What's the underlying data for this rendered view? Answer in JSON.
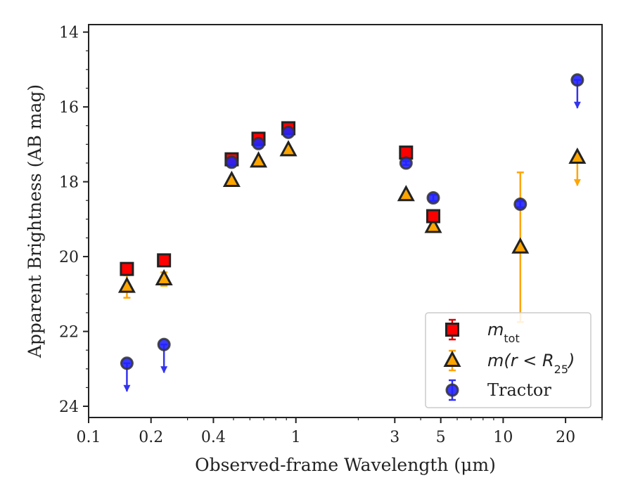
{
  "chart_data": {
    "type": "scatter",
    "xlabel": "Observed-frame Wavelength (μm)",
    "ylabel": "Apparent Brightness (AB mag)",
    "xscale": "log",
    "xlim": [
      0.1,
      30
    ],
    "ylim": [
      24.3,
      13.8
    ],
    "y_inverted": true,
    "x_ticks": [
      0.1,
      0.2,
      0.4,
      1,
      3,
      5,
      10,
      20
    ],
    "x_tick_labels": [
      "0.1",
      "0.2",
      "0.4",
      "1",
      "3",
      "5",
      "10",
      "20"
    ],
    "y_ticks": [
      14,
      16,
      18,
      20,
      22,
      24
    ],
    "y_tick_labels": [
      "14",
      "16",
      "18",
      "20",
      "22",
      "24"
    ],
    "grid": false,
    "legend_position": "lower-right",
    "series": [
      {
        "name": "m_tot",
        "legend_label": "m",
        "legend_sub": "tot",
        "marker": "square",
        "face_color": "#ff0000",
        "edge_color": "#222222",
        "error_color": "#dd0000",
        "points": [
          {
            "x": 0.153,
            "y": 20.33,
            "yerr": 0.08
          },
          {
            "x": 0.231,
            "y": 20.1,
            "yerr": 0.08
          },
          {
            "x": 0.49,
            "y": 17.4,
            "yerr": 0.05
          },
          {
            "x": 0.66,
            "y": 16.85,
            "yerr": 0.05
          },
          {
            "x": 0.92,
            "y": 16.57,
            "yerr": 0.05
          },
          {
            "x": 3.4,
            "y": 17.22,
            "yerr": 0.05
          },
          {
            "x": 4.6,
            "y": 18.92,
            "yerr": 0.08
          }
        ]
      },
      {
        "name": "m(r<R25)",
        "legend_label": "m(r < R",
        "legend_sub": "25",
        "legend_suffix": ")",
        "marker": "triangle",
        "face_color": "#ffa500",
        "edge_color": "#222222",
        "error_color": "#ffa500",
        "points": [
          {
            "x": 0.153,
            "y": 20.8,
            "yerr": 0.3
          },
          {
            "x": 0.231,
            "y": 20.6,
            "yerr": 0.18
          },
          {
            "x": 0.49,
            "y": 17.97,
            "yerr": 0.05
          },
          {
            "x": 0.66,
            "y": 17.45,
            "yerr": 0.05
          },
          {
            "x": 0.92,
            "y": 17.15,
            "yerr": 0.05
          },
          {
            "x": 3.4,
            "y": 18.35,
            "yerr": 0.05
          },
          {
            "x": 4.6,
            "y": 19.2,
            "yerr": 0.08
          },
          {
            "x": 12.1,
            "y": 19.75,
            "yerr": 2.0
          },
          {
            "x": 22.8,
            "y": 17.35,
            "upper_limit": true
          }
        ]
      },
      {
        "name": "Tractor",
        "legend_label": "Tractor",
        "marker": "circle",
        "face_color": "#2222ff",
        "edge_color": "#333333",
        "error_color": "#3333ee",
        "points": [
          {
            "x": 0.153,
            "y": 22.85,
            "upper_limit": true
          },
          {
            "x": 0.231,
            "y": 22.35,
            "upper_limit": true
          },
          {
            "x": 0.49,
            "y": 17.48,
            "yerr": 0.05
          },
          {
            "x": 0.66,
            "y": 16.98,
            "yerr": 0.05
          },
          {
            "x": 0.92,
            "y": 16.68,
            "yerr": 0.05
          },
          {
            "x": 3.4,
            "y": 17.5,
            "yerr": 0.05
          },
          {
            "x": 4.6,
            "y": 18.43,
            "yerr": 0.08
          },
          {
            "x": 12.1,
            "y": 18.6,
            "yerr": 0.08
          },
          {
            "x": 22.8,
            "y": 15.28,
            "upper_limit": true
          }
        ]
      }
    ]
  }
}
